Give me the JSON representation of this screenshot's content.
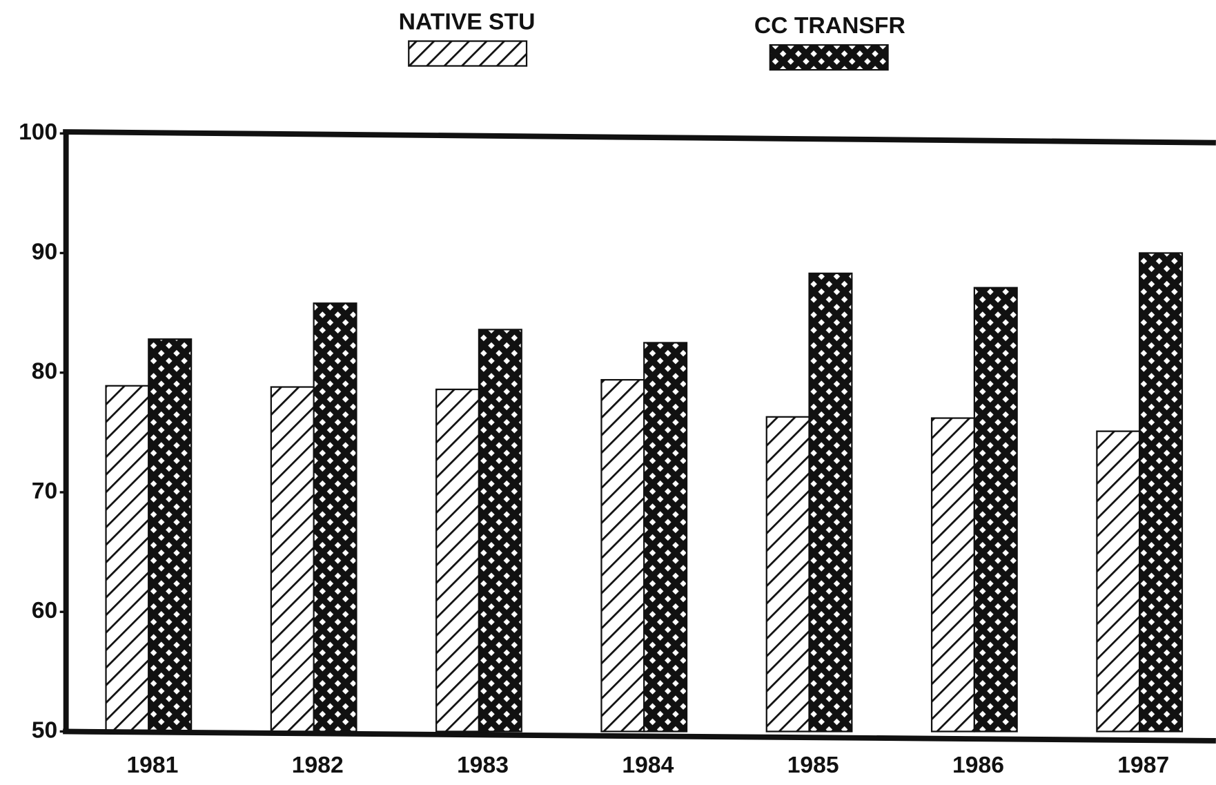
{
  "chart_data": {
    "type": "bar",
    "categories": [
      "1981",
      "1982",
      "1983",
      "1984",
      "1985",
      "1986",
      "1987"
    ],
    "series": [
      {
        "name": "NATIVE STU",
        "color": "#111111",
        "pattern": "hatch",
        "values": [
          78.9,
          78.8,
          78.6,
          79.4,
          76.3,
          76.2,
          75.1
        ]
      },
      {
        "name": "CC TRANSFR",
        "color": "#111111",
        "pattern": "crosshatch",
        "values": [
          82.8,
          85.8,
          83.6,
          82.5,
          88.3,
          87.1,
          90.0
        ]
      }
    ],
    "ylim": [
      50,
      100
    ],
    "yticks": [
      50,
      60,
      70,
      80,
      90,
      100
    ]
  }
}
